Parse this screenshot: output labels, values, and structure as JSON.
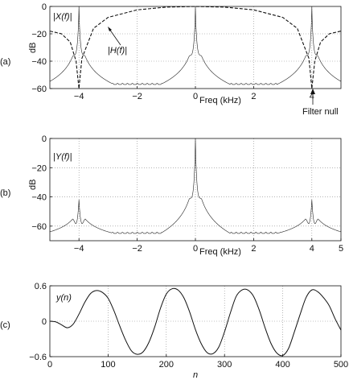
{
  "chart_data": [
    {
      "panel": "(a)",
      "type": "line",
      "xlabel": "Freq (kHz)",
      "ylabel": "dB",
      "xlim": [
        -5,
        5
      ],
      "ylim": [
        -60,
        0
      ],
      "xticks": [
        -4,
        -2,
        0,
        2,
        4
      ],
      "xtick_labels": [
        "−4",
        "−2",
        "0",
        "2",
        "4"
      ],
      "yticks": [
        0,
        -20,
        -40,
        -60
      ],
      "ytick_labels": [
        "0",
        "−20",
        "−40",
        "−60"
      ],
      "grid": true,
      "series": [
        {
          "name": "|X(f)|",
          "style": "solid",
          "peaks_khz": [
            -4,
            0,
            4
          ],
          "peak_db": 0,
          "floor_db": -57
        },
        {
          "name": "|H(f)|",
          "style": "dashed",
          "null_khz": [
            -4,
            4
          ],
          "passband_db": 0,
          "x": [
            -5,
            -4.6,
            -4.3,
            -4.1,
            -4.0,
            -3.9,
            -3.5,
            -3,
            -2,
            -1,
            0,
            1,
            2,
            3,
            3.5,
            3.9,
            4.0,
            4.1,
            4.3,
            4.6,
            5
          ],
          "y": [
            -18,
            -20,
            -26,
            -40,
            -60,
            -38,
            -16,
            -8,
            -2.5,
            -0.5,
            0,
            -0.5,
            -2.5,
            -8,
            -16,
            -38,
            -60,
            -40,
            -26,
            -20,
            -18
          ]
        }
      ],
      "annotations": {
        "x_label": "|X(f)|",
        "h_label": "|H(f)|",
        "null_label": "Filter null"
      }
    },
    {
      "panel": "(b)",
      "type": "line",
      "xlabel": "Freq (kHz)",
      "ylabel": "dB",
      "xlim": [
        -5,
        5
      ],
      "ylim": [
        -70,
        0
      ],
      "xticks": [
        -4,
        -2,
        0,
        2,
        4,
        5
      ],
      "xtick_labels": [
        "−4",
        "−2",
        "0",
        "2",
        "4",
        "5"
      ],
      "yticks": [
        0,
        -20,
        -40,
        -60
      ],
      "ytick_labels": [
        "0",
        "−20",
        "−40",
        "−60"
      ],
      "grid": true,
      "series": [
        {
          "name": "|Y(f)|",
          "style": "solid",
          "peaks_khz": [
            -4,
            0,
            4
          ],
          "peak_db": [
            -42,
            0,
            -42
          ],
          "floor_db": -65
        }
      ]
    },
    {
      "panel": "(c)",
      "type": "line",
      "xlabel": "n",
      "ylabel": "",
      "xlim": [
        0,
        500
      ],
      "ylim": [
        -0.6,
        0.6
      ],
      "xticks": [
        0,
        100,
        200,
        300,
        400,
        500
      ],
      "xtick_labels": [
        "0",
        "100",
        "200",
        "300",
        "400",
        "500"
      ],
      "yticks": [
        0.6,
        0,
        -0.6
      ],
      "ytick_labels": [
        "0.6",
        "0",
        "−0.6"
      ],
      "grid": true,
      "series": [
        {
          "name": "y(n)",
          "style": "solid",
          "x": [
            0,
            10,
            20,
            30,
            40,
            50,
            60,
            70,
            80,
            90,
            100,
            110,
            120,
            130,
            140,
            150,
            160,
            170,
            180,
            190,
            200,
            210,
            220,
            230,
            240,
            250,
            260,
            270,
            280,
            290,
            300,
            310,
            320,
            330,
            340,
            350,
            360,
            370,
            380,
            390,
            400,
            410,
            420,
            430,
            440,
            450,
            460,
            470,
            480,
            490,
            500
          ],
          "y": [
            0.0,
            -0.01,
            -0.06,
            -0.11,
            -0.05,
            0.12,
            0.32,
            0.47,
            0.52,
            0.49,
            0.39,
            0.18,
            -0.08,
            -0.32,
            -0.5,
            -0.56,
            -0.52,
            -0.36,
            -0.1,
            0.22,
            0.46,
            0.55,
            0.53,
            0.4,
            0.16,
            -0.14,
            -0.38,
            -0.53,
            -0.55,
            -0.44,
            -0.18,
            0.14,
            0.42,
            0.53,
            0.53,
            0.42,
            0.18,
            -0.12,
            -0.38,
            -0.54,
            -0.58,
            -0.46,
            -0.18,
            0.12,
            0.4,
            0.53,
            0.5,
            0.4,
            0.26,
            0.04,
            -0.15
          ]
        }
      ]
    }
  ],
  "panel_labels": [
    "(a)",
    "(b)",
    "(c)"
  ]
}
